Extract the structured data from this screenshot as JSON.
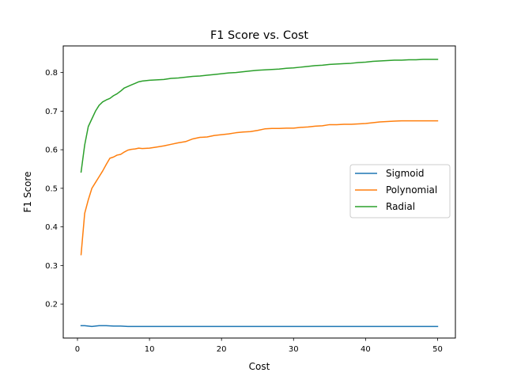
{
  "chart_data": {
    "type": "line",
    "title": "F1 Score vs. Cost",
    "xlabel": "Cost",
    "ylabel": "F1 Score",
    "xlim": [
      -1.975,
      52.475
    ],
    "ylim": [
      0.112,
      0.869
    ],
    "xticks": [
      0,
      10,
      20,
      30,
      40,
      50
    ],
    "yticks": [
      0.2,
      0.3,
      0.4,
      0.5,
      0.6,
      0.7,
      0.8
    ],
    "grid": false,
    "legend_position": "right",
    "series": [
      {
        "name": "Sigmoid",
        "color": "#1f77b4",
        "x": [
          0.5,
          1,
          1.5,
          2,
          2.5,
          3,
          4,
          5,
          6,
          7,
          8,
          10,
          15,
          20,
          25,
          30,
          35,
          40,
          45,
          50
        ],
        "y": [
          0.144,
          0.144,
          0.143,
          0.142,
          0.143,
          0.144,
          0.144,
          0.143,
          0.143,
          0.142,
          0.142,
          0.142,
          0.142,
          0.142,
          0.142,
          0.142,
          0.142,
          0.142,
          0.142,
          0.142
        ]
      },
      {
        "name": "Polynomial",
        "color": "#ff7f0e",
        "x": [
          0.5,
          1,
          1.5,
          2,
          2.5,
          3,
          3.5,
          4,
          4.5,
          5,
          5.5,
          6,
          6.5,
          7,
          7.5,
          8,
          8.5,
          9,
          10,
          11,
          12,
          13,
          14,
          15,
          16,
          17,
          18,
          19,
          20,
          21,
          22,
          23,
          24,
          25,
          26,
          27,
          28,
          29,
          30,
          31,
          32,
          33,
          34,
          35,
          36,
          37,
          38,
          39,
          40,
          41,
          42,
          43,
          44,
          45,
          46,
          47,
          48,
          49,
          50
        ],
        "y": [
          0.328,
          0.435,
          0.47,
          0.5,
          0.515,
          0.53,
          0.545,
          0.562,
          0.578,
          0.581,
          0.586,
          0.588,
          0.594,
          0.599,
          0.601,
          0.602,
          0.604,
          0.603,
          0.604,
          0.607,
          0.61,
          0.614,
          0.618,
          0.621,
          0.628,
          0.632,
          0.633,
          0.637,
          0.639,
          0.641,
          0.644,
          0.646,
          0.647,
          0.65,
          0.654,
          0.655,
          0.655,
          0.656,
          0.656,
          0.658,
          0.659,
          0.661,
          0.662,
          0.665,
          0.665,
          0.666,
          0.666,
          0.667,
          0.668,
          0.67,
          0.672,
          0.673,
          0.674,
          0.675,
          0.675,
          0.675,
          0.675,
          0.675,
          0.675
        ]
      },
      {
        "name": "Radial",
        "color": "#2ca02c",
        "x": [
          0.5,
          1,
          1.5,
          2,
          2.5,
          3,
          3.5,
          4,
          4.5,
          5,
          5.5,
          6,
          6.5,
          7,
          7.5,
          8,
          8.5,
          9,
          10,
          11,
          12,
          13,
          14,
          15,
          16,
          17,
          18,
          19,
          20,
          21,
          22,
          23,
          24,
          25,
          26,
          27,
          28,
          29,
          30,
          31,
          32,
          33,
          34,
          35,
          36,
          37,
          38,
          39,
          40,
          41,
          42,
          43,
          44,
          45,
          46,
          47,
          48,
          49,
          50
        ],
        "y": [
          0.542,
          0.612,
          0.66,
          0.68,
          0.7,
          0.715,
          0.724,
          0.729,
          0.733,
          0.74,
          0.745,
          0.752,
          0.76,
          0.764,
          0.768,
          0.772,
          0.776,
          0.778,
          0.78,
          0.781,
          0.782,
          0.785,
          0.786,
          0.788,
          0.79,
          0.791,
          0.793,
          0.795,
          0.797,
          0.799,
          0.8,
          0.802,
          0.804,
          0.806,
          0.807,
          0.808,
          0.809,
          0.811,
          0.812,
          0.814,
          0.816,
          0.818,
          0.819,
          0.821,
          0.822,
          0.823,
          0.824,
          0.826,
          0.827,
          0.829,
          0.83,
          0.831,
          0.832,
          0.832,
          0.833,
          0.833,
          0.834,
          0.834,
          0.834
        ]
      }
    ]
  }
}
